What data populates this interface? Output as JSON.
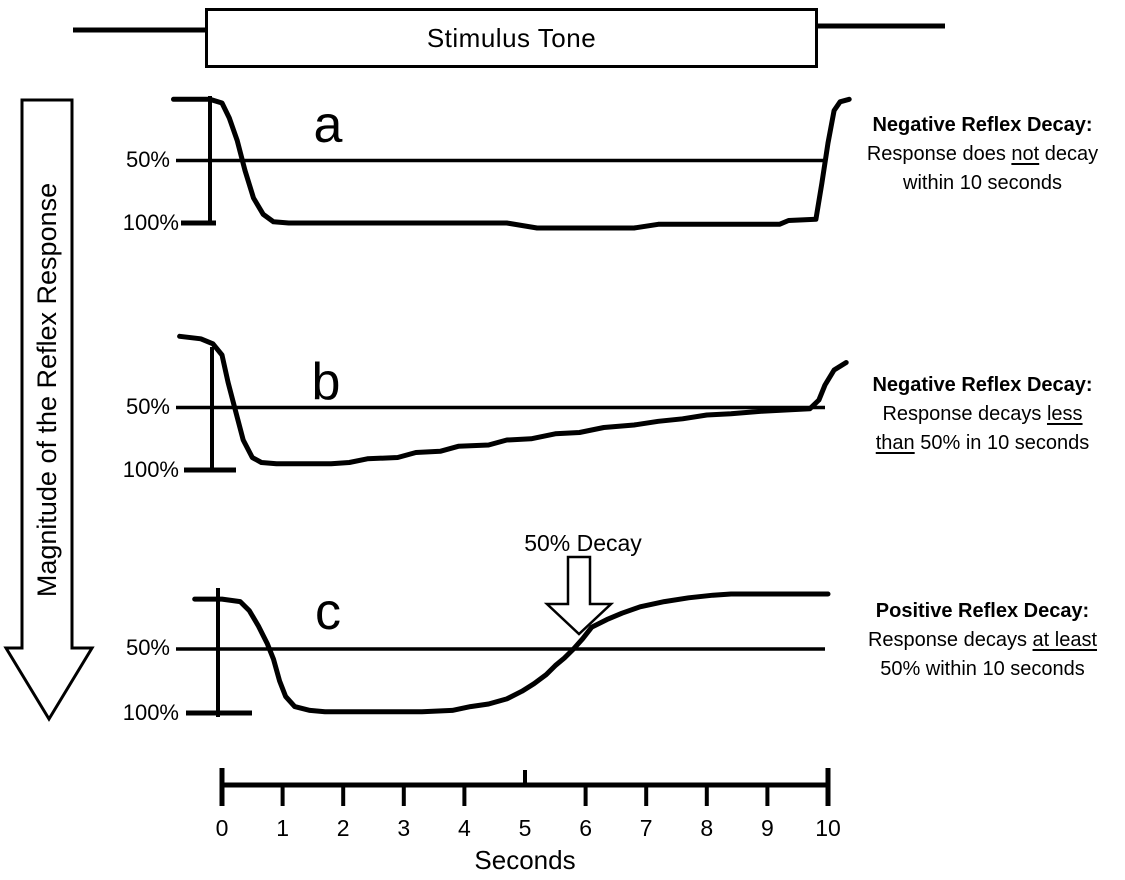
{
  "stimulus": {
    "label": "Stimulus Tone"
  },
  "y_axis_arrow": {
    "label": "Magnitude of the Reflex Response"
  },
  "panels": [
    {
      "letter": "a",
      "y_labels": {
        "fifty": "50%",
        "hundred": "100%"
      },
      "annotation": {
        "title": "Negative Reflex Decay:",
        "lines": [
          [
            {
              "t": "Response does "
            },
            {
              "t": "not",
              "u": true
            },
            {
              "t": " decay"
            }
          ],
          [
            {
              "t": "within 10 seconds"
            }
          ]
        ]
      }
    },
    {
      "letter": "b",
      "y_labels": {
        "fifty": "50%",
        "hundred": "100%"
      },
      "annotation": {
        "title": "Negative Reflex Decay:",
        "lines": [
          [
            {
              "t": "Response decays "
            },
            {
              "t": "less",
              "u": true
            }
          ],
          [
            {
              "t": "than",
              "u": true
            },
            {
              "t": " 50% in 10 seconds"
            }
          ]
        ]
      }
    },
    {
      "letter": "c",
      "y_labels": {
        "fifty": "50%",
        "hundred": "100%"
      },
      "annotation": {
        "title": "Positive Reflex Decay:",
        "lines": [
          [
            {
              "t": "Response decays "
            },
            {
              "t": "at least",
              "u": true
            }
          ],
          [
            {
              "t": "50% within 10 seconds"
            }
          ]
        ]
      }
    }
  ],
  "decay_marker": {
    "label": "50% Decay"
  },
  "time_axis": {
    "label": "Seconds",
    "ticks": [
      "0",
      "1",
      "2",
      "3",
      "4",
      "5",
      "6",
      "7",
      "8",
      "9",
      "10"
    ]
  },
  "colors": {
    "ink": "#000000",
    "paper": "#ffffff"
  },
  "chart_data": {
    "type": "line",
    "x": {
      "label": "Seconds",
      "min": 0,
      "max": 10,
      "ticks": [
        0,
        1,
        2,
        3,
        4,
        5,
        6,
        7,
        8,
        9,
        10
      ]
    },
    "y": {
      "label": "Magnitude of the Reflex Response",
      "unit": "percent of initial reflex magnitude",
      "direction": "magnitude increases downward",
      "reference_levels_pct": [
        50,
        100
      ]
    },
    "stimulus": {
      "label": "Stimulus Tone",
      "duration_s": 10
    },
    "panels": [
      {
        "label": "a",
        "outcome": "Negative Reflex Decay: Response does not decay within 10 seconds",
        "series": {
          "name": "reflex response magnitude",
          "points": [
            [
              -0.8,
              1
            ],
            [
              -0.2,
              1
            ],
            [
              0,
              4
            ],
            [
              0.12,
              16
            ],
            [
              0.25,
              34
            ],
            [
              0.38,
              58
            ],
            [
              0.52,
              80
            ],
            [
              0.68,
              93
            ],
            [
              0.85,
              99
            ],
            [
              1.1,
              100
            ],
            [
              4.7,
              100
            ],
            [
              5.2,
              104
            ],
            [
              6.8,
              104
            ],
            [
              7.2,
              101
            ],
            [
              9.2,
              101
            ],
            [
              9.35,
              98
            ],
            [
              9.8,
              97
            ],
            [
              9.9,
              68
            ],
            [
              10,
              36
            ],
            [
              10.1,
              10
            ],
            [
              10.2,
              3
            ],
            [
              10.35,
              1
            ]
          ]
        }
      },
      {
        "label": "b",
        "outcome": "Negative Reflex Decay: Response decays less than 50% in 10 seconds",
        "series": {
          "name": "reflex response magnitude",
          "points": [
            [
              -0.7,
              -7
            ],
            [
              -0.35,
              -5
            ],
            [
              -0.15,
              -1
            ],
            [
              0,
              8
            ],
            [
              0.1,
              30
            ],
            [
              0.22,
              52
            ],
            [
              0.35,
              76
            ],
            [
              0.5,
              90
            ],
            [
              0.65,
              94
            ],
            [
              0.9,
              95
            ],
            [
              1.8,
              95
            ],
            [
              2.1,
              94
            ],
            [
              2.4,
              91
            ],
            [
              2.9,
              90
            ],
            [
              3.2,
              86
            ],
            [
              3.6,
              85
            ],
            [
              3.9,
              81
            ],
            [
              4.4,
              80
            ],
            [
              4.7,
              76
            ],
            [
              5.1,
              75
            ],
            [
              5.5,
              71
            ],
            [
              5.9,
              70
            ],
            [
              6.3,
              66
            ],
            [
              6.8,
              64
            ],
            [
              7.2,
              61
            ],
            [
              7.6,
              59
            ],
            [
              8,
              56
            ],
            [
              8.4,
              55
            ],
            [
              8.9,
              53
            ],
            [
              9.3,
              52
            ],
            [
              9.7,
              51
            ],
            [
              9.85,
              44
            ],
            [
              9.95,
              32
            ],
            [
              10.1,
              20
            ],
            [
              10.3,
              14
            ]
          ]
        }
      },
      {
        "label": "c",
        "outcome": "Positive Reflex Decay: Response decays at least 50% within 10 seconds",
        "marker": {
          "label": "50% Decay",
          "time_s": 5.8,
          "response_pct": 50
        },
        "series": {
          "name": "reflex response magnitude",
          "points": [
            [
              -0.45,
              11
            ],
            [
              0,
              11
            ],
            [
              0.3,
              13
            ],
            [
              0.45,
              20
            ],
            [
              0.6,
              32
            ],
            [
              0.75,
              46
            ],
            [
              0.85,
              58
            ],
            [
              0.95,
              75
            ],
            [
              1.05,
              87
            ],
            [
              1.2,
              95
            ],
            [
              1.45,
              98
            ],
            [
              1.7,
              99
            ],
            [
              3.3,
              99
            ],
            [
              3.8,
              98
            ],
            [
              4.1,
              95
            ],
            [
              4.4,
              93
            ],
            [
              4.7,
              89
            ],
            [
              4.95,
              83
            ],
            [
              5.15,
              77
            ],
            [
              5.35,
              70
            ],
            [
              5.5,
              63
            ],
            [
              5.65,
              57
            ],
            [
              5.8,
              50
            ],
            [
              5.95,
              42
            ],
            [
              6.1,
              33
            ],
            [
              6.35,
              27
            ],
            [
              6.6,
              22
            ],
            [
              6.9,
              17
            ],
            [
              7.3,
              13
            ],
            [
              7.7,
              10
            ],
            [
              8.1,
              8
            ],
            [
              8.4,
              7
            ],
            [
              10,
              7
            ]
          ]
        }
      }
    ]
  }
}
